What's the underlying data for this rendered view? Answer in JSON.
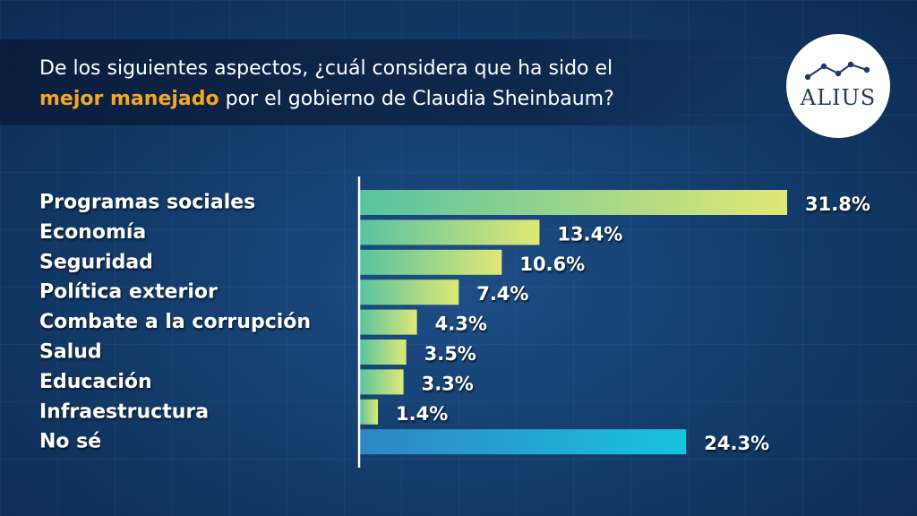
{
  "header": {
    "question_part1": "De los siguientes aspectos, ¿cuál considera que ha sido el",
    "question_highlight": "mejor manejado",
    "question_part2": "por el gobierno de Claudia Sheinbaum?"
  },
  "logo": {
    "text": "ALIUS",
    "name": "alius-logo"
  },
  "colors": {
    "background": "#143d6d",
    "highlight": "#f5a623",
    "bar_gradient_start": "#57c3a0",
    "bar_gradient_end": "#e1e875",
    "no_se_gradient_start": "#2f86c0",
    "no_se_gradient_end": "#18c4de",
    "axis": "#ffffff"
  },
  "chart_data": {
    "type": "bar",
    "orientation": "horizontal",
    "categories": [
      "Programas sociales",
      "Economía",
      "Seguridad",
      "Política exterior",
      "Combate a la corrupción",
      "Salud",
      "Educación",
      "Infraestructura",
      "No sé"
    ],
    "values": [
      31.8,
      13.4,
      10.6,
      7.4,
      4.3,
      3.5,
      3.3,
      1.4,
      24.3
    ],
    "value_labels": [
      "31.8%",
      "13.4%",
      "10.6%",
      "7.4%",
      "4.3%",
      "3.5%",
      "3.3%",
      "1.4%",
      "24.3%"
    ],
    "unit": "%",
    "title": "",
    "xlabel": "",
    "ylabel": "",
    "grid": false,
    "legend": "none"
  }
}
